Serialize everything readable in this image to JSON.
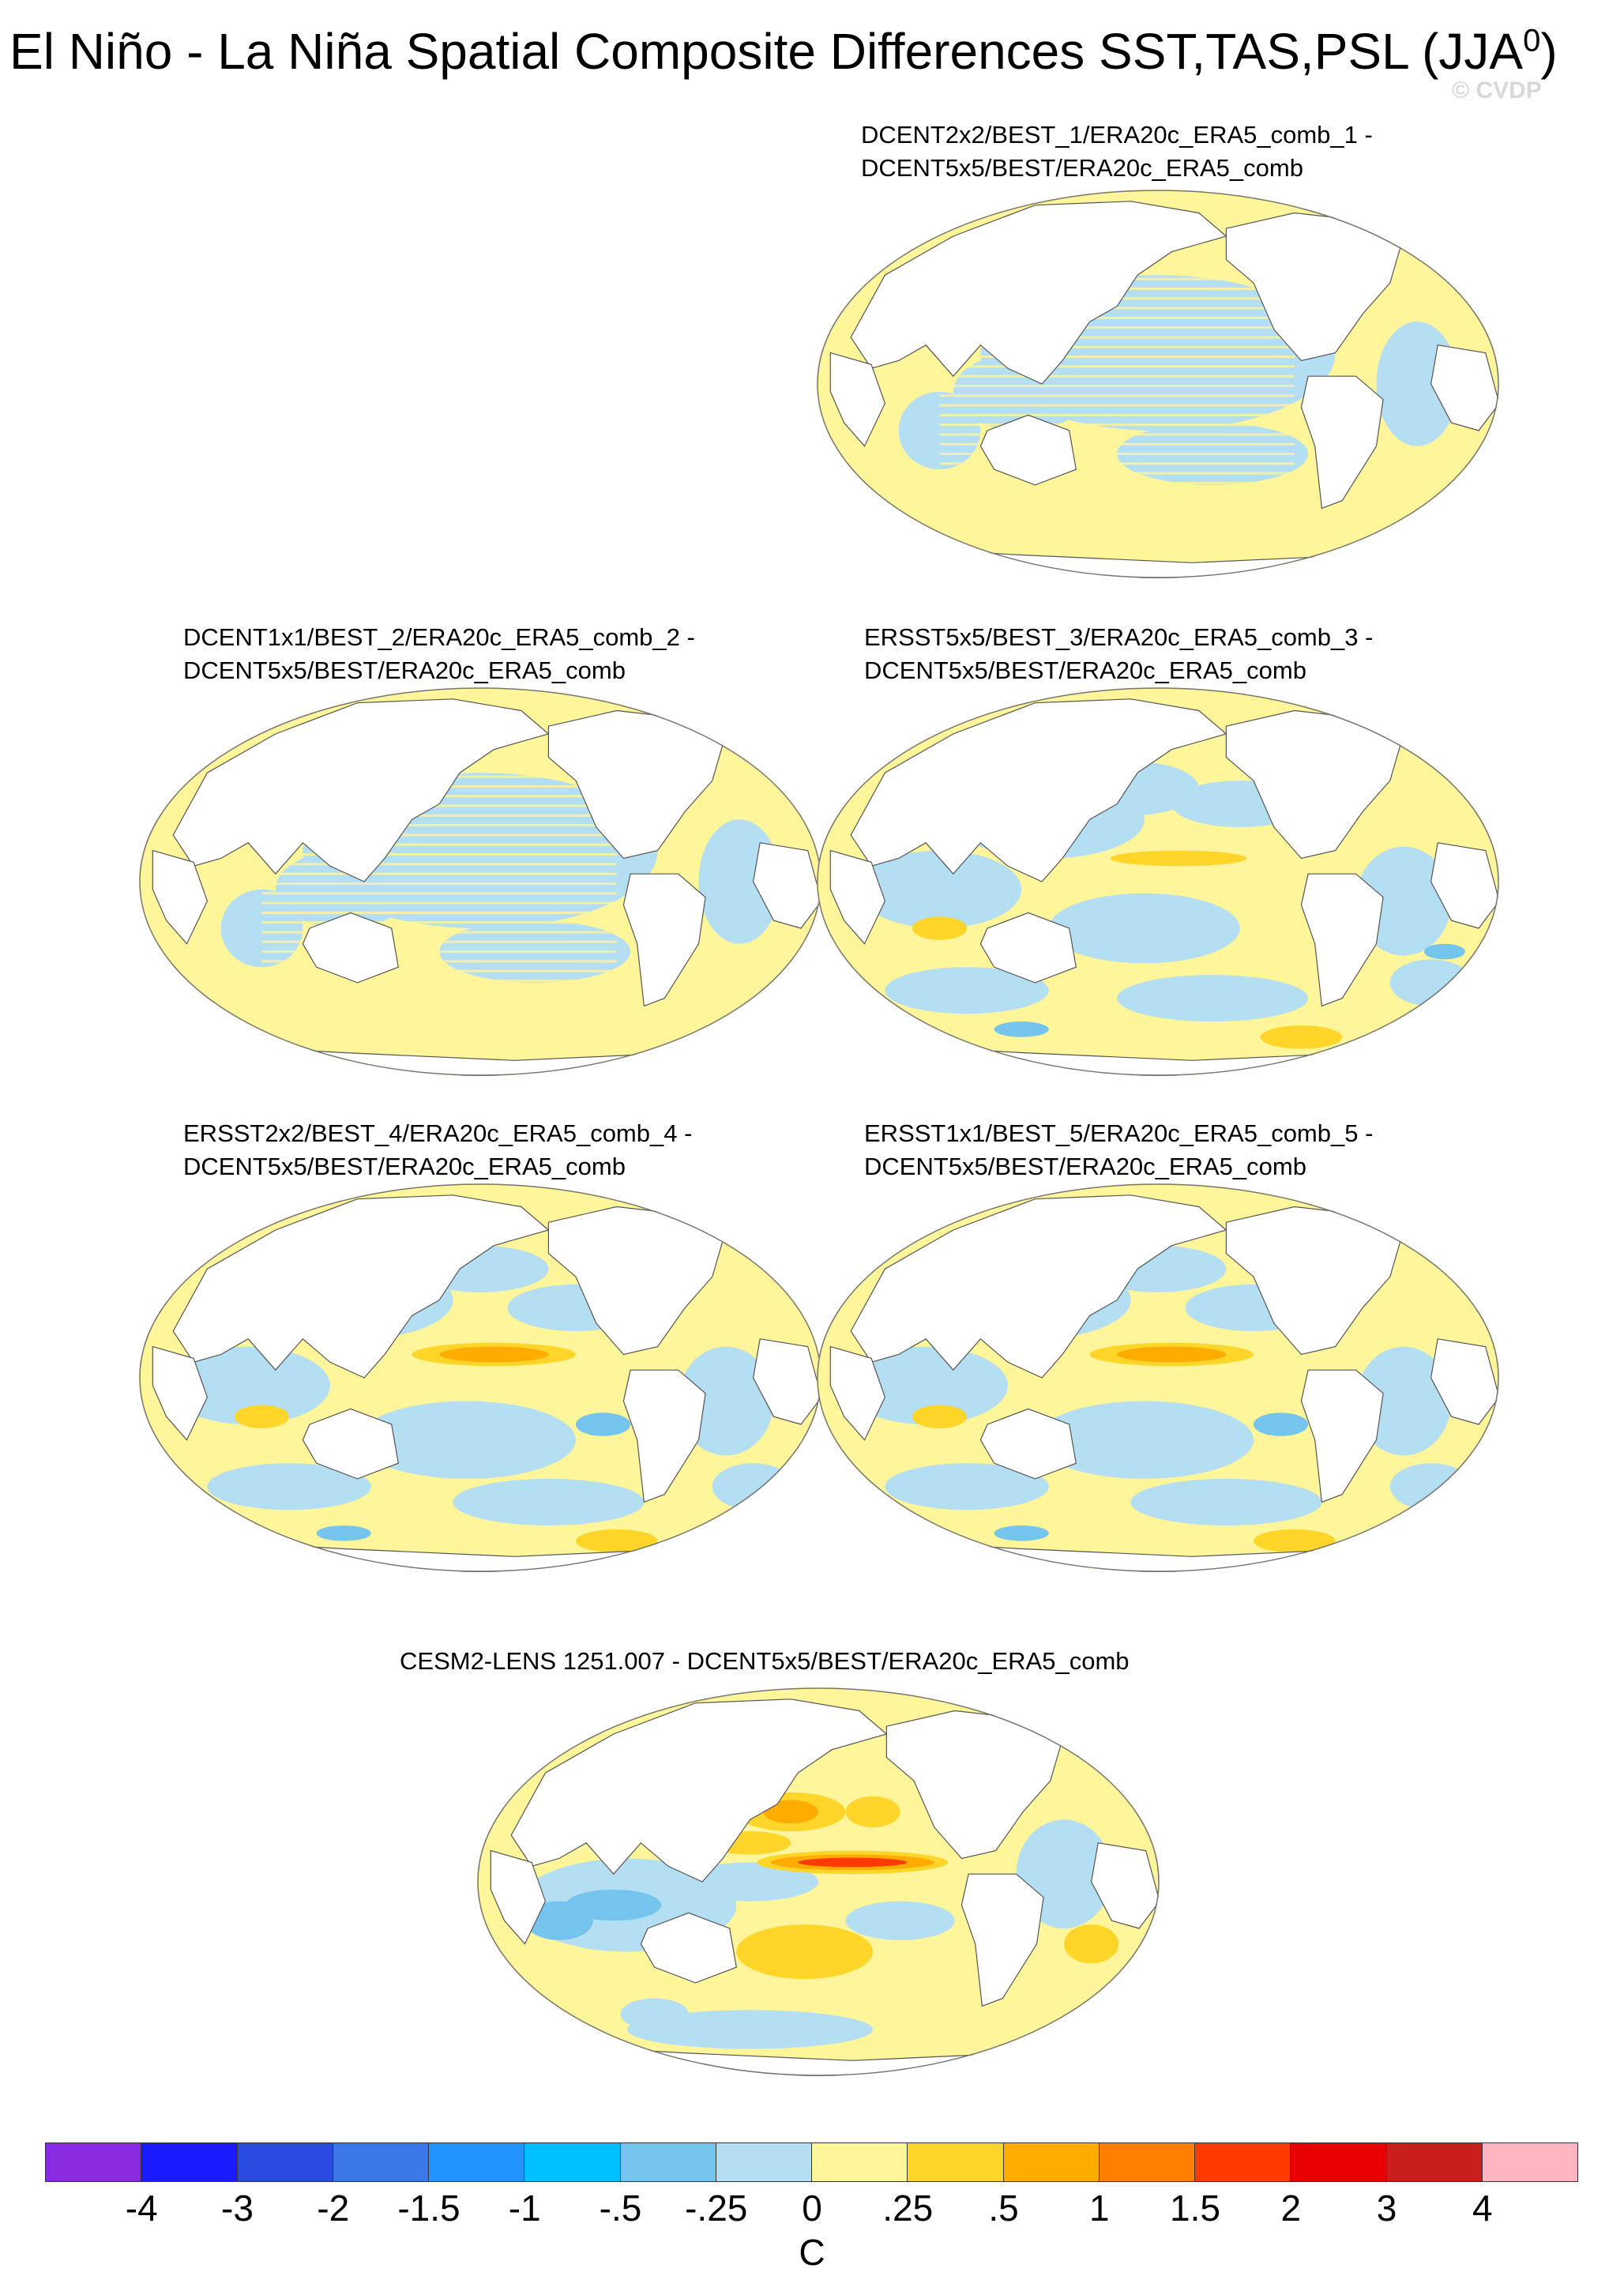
{
  "title": {
    "main": "El Niño - La Niña Spatial Composite Differences SST,TAS,PSL (JJA",
    "superscript": "0",
    "close": ")",
    "watermark": "© CVDP"
  },
  "panels": [
    {
      "line1": "DCENT2x2/BEST_1/ERA20c_ERA5_comb_1 -",
      "line2": "DCENT5x5/BEST/ERA20c_ERA5_comb",
      "pattern": "striped-small"
    },
    {
      "line1": "DCENT1x1/BEST_2/ERA20c_ERA5_comb_2 -",
      "line2": "DCENT5x5/BEST/ERA20c_ERA5_comb",
      "pattern": "striped-small"
    },
    {
      "line1": "ERSST5x5/BEST_3/ERA20c_ERA5_comb_3 -",
      "line2": "DCENT5x5/BEST/ERA20c_ERA5_comb",
      "pattern": "ersst-weak"
    },
    {
      "line1": "ERSST2x2/BEST_4/ERA20c_ERA5_comb_4 -",
      "line2": "DCENT5x5/BEST/ERA20c_ERA5_comb",
      "pattern": "ersst-strong"
    },
    {
      "line1": "ERSST1x1/BEST_5/ERA20c_ERA5_comb_5 -",
      "line2": "DCENT5x5/BEST/ERA20c_ERA5_comb",
      "pattern": "ersst-strong"
    },
    {
      "line1": "CESM2-LENS 1251.007 - DCENT5x5/BEST/ERA20c_ERA5_comb",
      "line2": "",
      "pattern": "cesm"
    }
  ],
  "colorbar": {
    "units": "C",
    "colors": [
      "#8a2be2",
      "#1a1aff",
      "#2a4ae0",
      "#3a78e8",
      "#2294ff",
      "#00bfff",
      "#74c4ee",
      "#b4def2",
      "#fff59a",
      "#ffd52a",
      "#ffab00",
      "#ff7f00",
      "#ff3a00",
      "#e80000",
      "#c81e1e",
      "#ffb6c1"
    ],
    "ticks": [
      "-4",
      "-3",
      "-2",
      "-1.5",
      "-1",
      "-.5",
      "-.25",
      "0",
      ".25",
      ".5",
      "1",
      "1.5",
      "2",
      "3",
      "4"
    ]
  }
}
